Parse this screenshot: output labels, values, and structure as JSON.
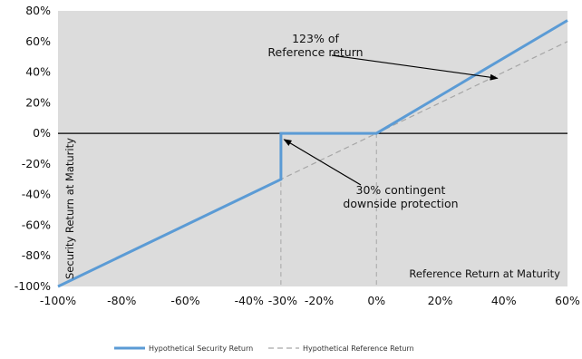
{
  "chart_data": {
    "type": "line",
    "xlabel": "Reference Return at Maturity",
    "ylabel": "Security Return at Maturity",
    "xlim": [
      -100,
      60
    ],
    "ylim": [
      -100,
      80
    ],
    "x_ticks": [
      "-100%",
      "-80%",
      "-60%",
      "-40%",
      "-30%",
      "-20%",
      "0%",
      "20%",
      "40%",
      "60%"
    ],
    "x_tick_values": [
      -100,
      -80,
      -60,
      -40,
      -30,
      -20,
      0,
      20,
      40,
      60
    ],
    "y_ticks": [
      "80%",
      "60%",
      "40%",
      "20%",
      "0%",
      "-20%",
      "-40%",
      "-60%",
      "-80%",
      "-100%"
    ],
    "y_tick_values": [
      80,
      60,
      40,
      20,
      0,
      -20,
      -40,
      -60,
      -80,
      -100
    ],
    "plot_background": "#dcdcdc",
    "grid": false,
    "legend_position": "bottom",
    "series": [
      {
        "name": "Hypothetical Security Return",
        "color": "#5b9bd5",
        "style": "solid",
        "points": [
          [
            -100,
            -100
          ],
          [
            -30,
            -30
          ],
          [
            -30,
            0
          ],
          [
            0,
            0
          ],
          [
            60,
            73.8
          ]
        ]
      },
      {
        "name": "Hypothetical Reference Return",
        "color": "#a6a6a6",
        "style": "dashed",
        "points": [
          [
            -100,
            -100
          ],
          [
            60,
            60
          ]
        ]
      }
    ],
    "reference_lines": [
      {
        "axis": "y",
        "value": 0,
        "color": "#000000"
      },
      {
        "axis": "x",
        "value": -30,
        "color": "#a6a6a6",
        "style": "dashed"
      },
      {
        "axis": "x",
        "value": 0,
        "color": "#a6a6a6",
        "style": "dashed"
      }
    ],
    "annotations": [
      {
        "lines": [
          "123% of",
          "Reference return"
        ],
        "arrow_to": [
          38,
          36
        ]
      },
      {
        "lines": [
          "30% contingent",
          "downside protection"
        ],
        "arrow_to": [
          -29,
          -4
        ]
      }
    ]
  }
}
